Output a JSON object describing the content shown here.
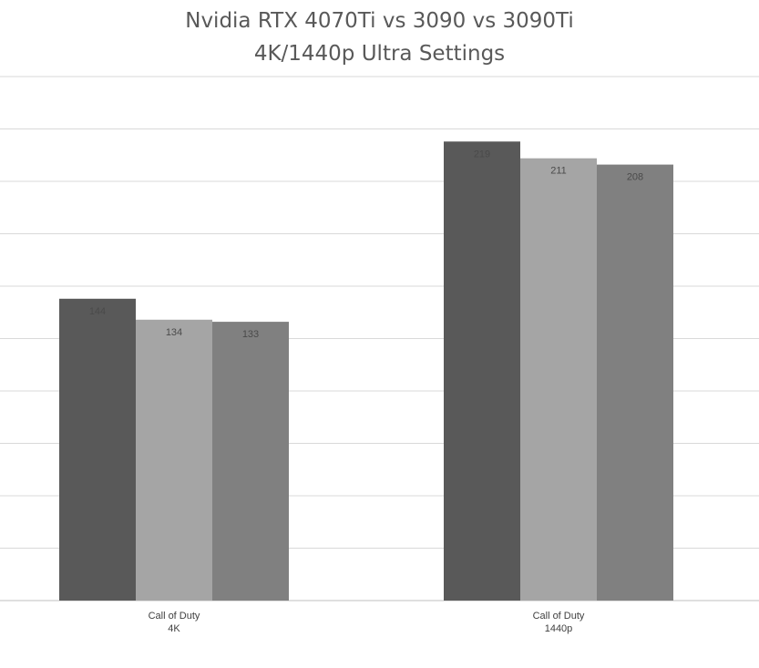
{
  "title": {
    "line1": "Nvidia RTX 4070Ti vs 3090 vs 3090Ti",
    "line2": "4K/1440p Ultra Settings"
  },
  "colors": {
    "series": [
      "#595959",
      "#a5a5a5",
      "#808080"
    ],
    "gridline": "#d9d9d9",
    "axis": "#bfbfbf"
  },
  "chart_data": {
    "type": "bar",
    "categories": [
      [
        "Call of Duty",
        "4K"
      ],
      [
        "Call of Duty",
        "1440p"
      ]
    ],
    "series": [
      {
        "values": [
          144,
          219
        ],
        "labels": [
          "144",
          "219"
        ]
      },
      {
        "values": [
          134,
          211
        ],
        "labels": [
          "134",
          "211"
        ]
      },
      {
        "values": [
          133,
          208
        ],
        "labels": [
          "133",
          "208"
        ]
      }
    ],
    "ylim": [
      0,
      250
    ],
    "gridline_step": 25,
    "grid": true,
    "legend": "none",
    "xlabel": "",
    "ylabel": ""
  }
}
